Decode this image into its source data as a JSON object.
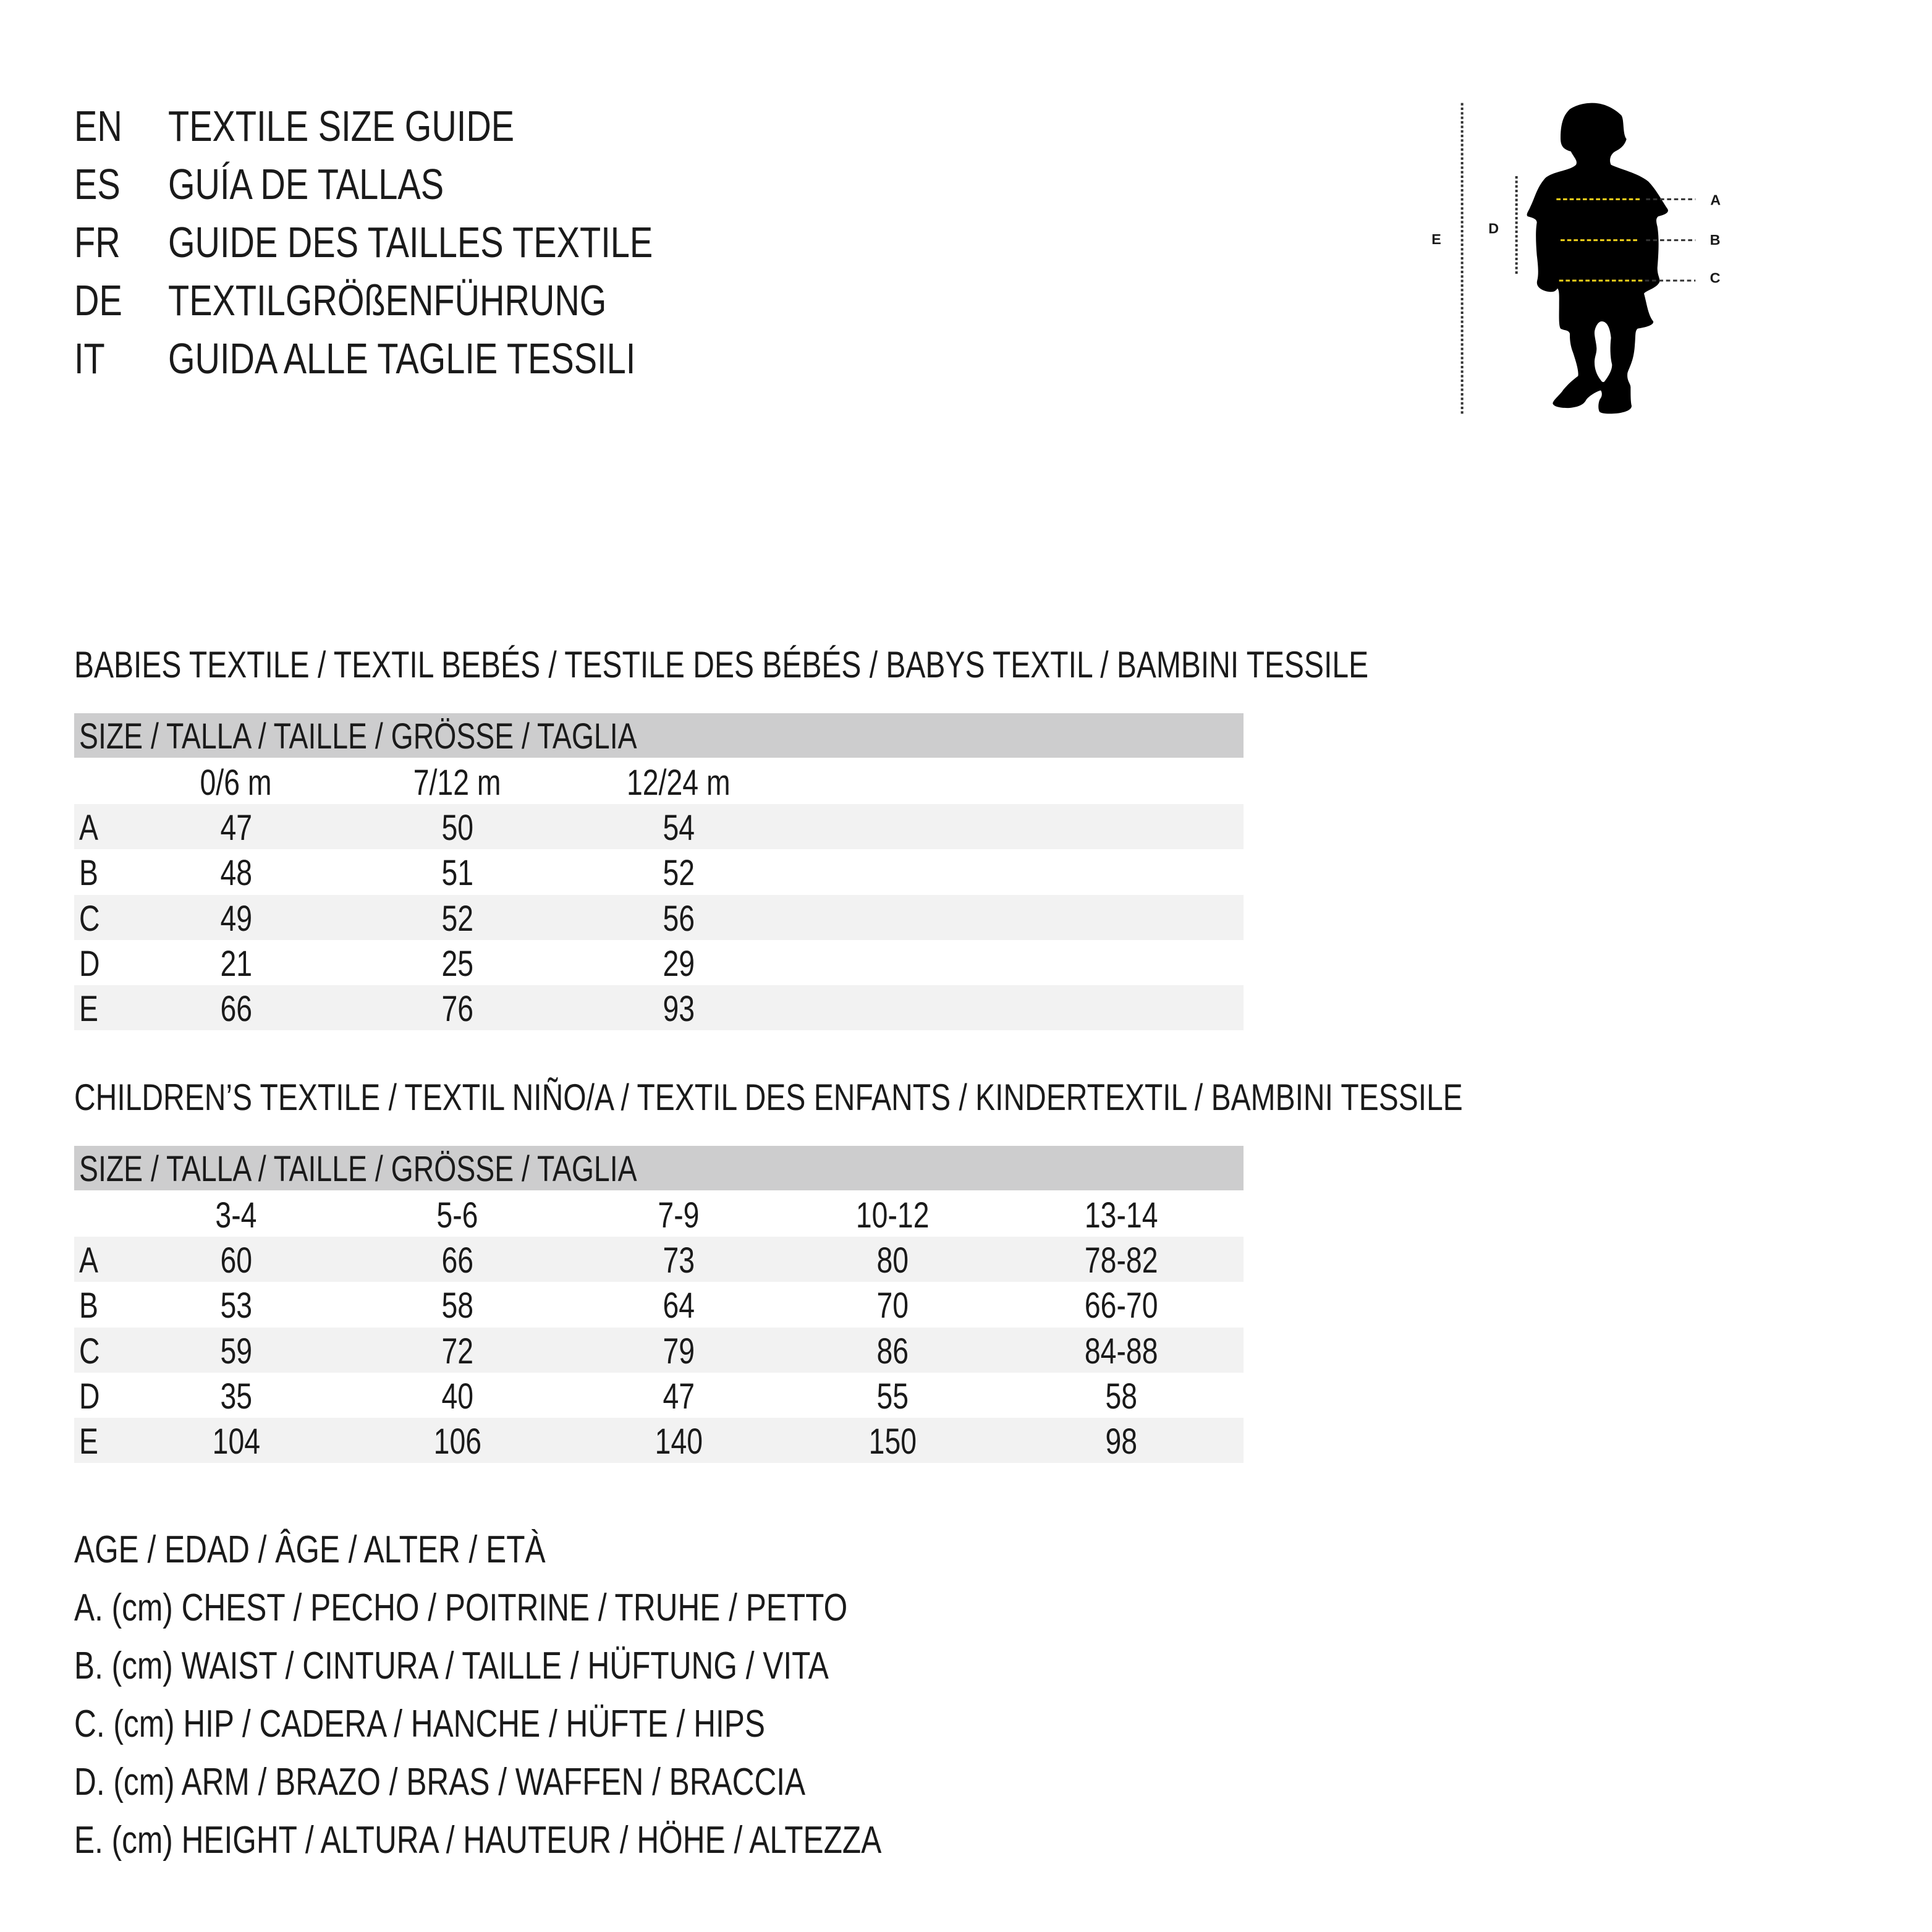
{
  "titles": [
    {
      "code": "EN",
      "text": "TEXTILE SIZE GUIDE"
    },
    {
      "code": "ES",
      "text": "GUÍA DE TALLAS"
    },
    {
      "code": "FR",
      "text": "GUIDE DES TAILLES TEXTILE"
    },
    {
      "code": "DE",
      "text": "TEXTILGRÖßENFÜHRUNG"
    },
    {
      "code": "IT",
      "text": "GUIDA ALLE TAGLIE TESSILI"
    }
  ],
  "babies": {
    "heading": "BABIES TEXTILE / TEXTIL BEBÉS / TESTILE DES BÉBÉS / BABYS TEXTIL / BAMBINI TESSILE",
    "size_header": "SIZE / TALLA / TAILLE / GRÖSSE / TAGLIA",
    "columns": [
      "0/6 m",
      "7/12 m",
      "12/24 m"
    ],
    "rows": [
      {
        "label": "A",
        "values": [
          "47",
          "50",
          "54"
        ]
      },
      {
        "label": "B",
        "values": [
          "48",
          "51",
          "52"
        ]
      },
      {
        "label": "C",
        "values": [
          "49",
          "52",
          "56"
        ]
      },
      {
        "label": "D",
        "values": [
          "21",
          "25",
          "29"
        ]
      },
      {
        "label": "E",
        "values": [
          "66",
          "76",
          "93"
        ]
      }
    ]
  },
  "children": {
    "heading": "CHILDREN’S TEXTILE / TEXTIL NIÑO/A / TEXTIL DES ENFANTS / KINDERTEXTIL / BAMBINI TESSILE",
    "size_header": "SIZE / TALLA / TAILLE / GRÖSSE / TAGLIA",
    "columns": [
      "3-4",
      "5-6",
      "7-9",
      "10-12",
      "13-14"
    ],
    "rows": [
      {
        "label": "A",
        "values": [
          "60",
          "66",
          "73",
          "80",
          "78-82"
        ]
      },
      {
        "label": "B",
        "values": [
          "53",
          "58",
          "64",
          "70",
          "66-70"
        ]
      },
      {
        "label": "C",
        "values": [
          "59",
          "72",
          "79",
          "86",
          "84-88"
        ]
      },
      {
        "label": "D",
        "values": [
          "35",
          "40",
          "47",
          "55",
          "58"
        ]
      },
      {
        "label": "E",
        "values": [
          "104",
          "106",
          "140",
          "150",
          "98"
        ]
      }
    ]
  },
  "legend": [
    "AGE / EDAD / ÂGE / ALTER / ETÀ",
    "A. (cm) CHEST / PECHO / POITRINE / TRUHE / PETTO",
    "B. (cm) WAIST / CINTURA / TAILLE / HÜFTUNG / VITA",
    "C. (cm) HIP / CADERA / HANCHE / HÜFTE / HIPS",
    "D. (cm) ARM / BRAZO / BRAS / WAFFEN / BRACCIA",
    "E. (cm) HEIGHT / ALTURA / HAUTEUR / HÖHE / ALTEZZA"
  ],
  "figure": {
    "labels": {
      "a": "A",
      "b": "B",
      "c": "C",
      "d": "D",
      "e": "E"
    },
    "colors": {
      "silhouette": "#000000",
      "measure_line": "#f2d21b",
      "guide_line": "#333333"
    }
  }
}
